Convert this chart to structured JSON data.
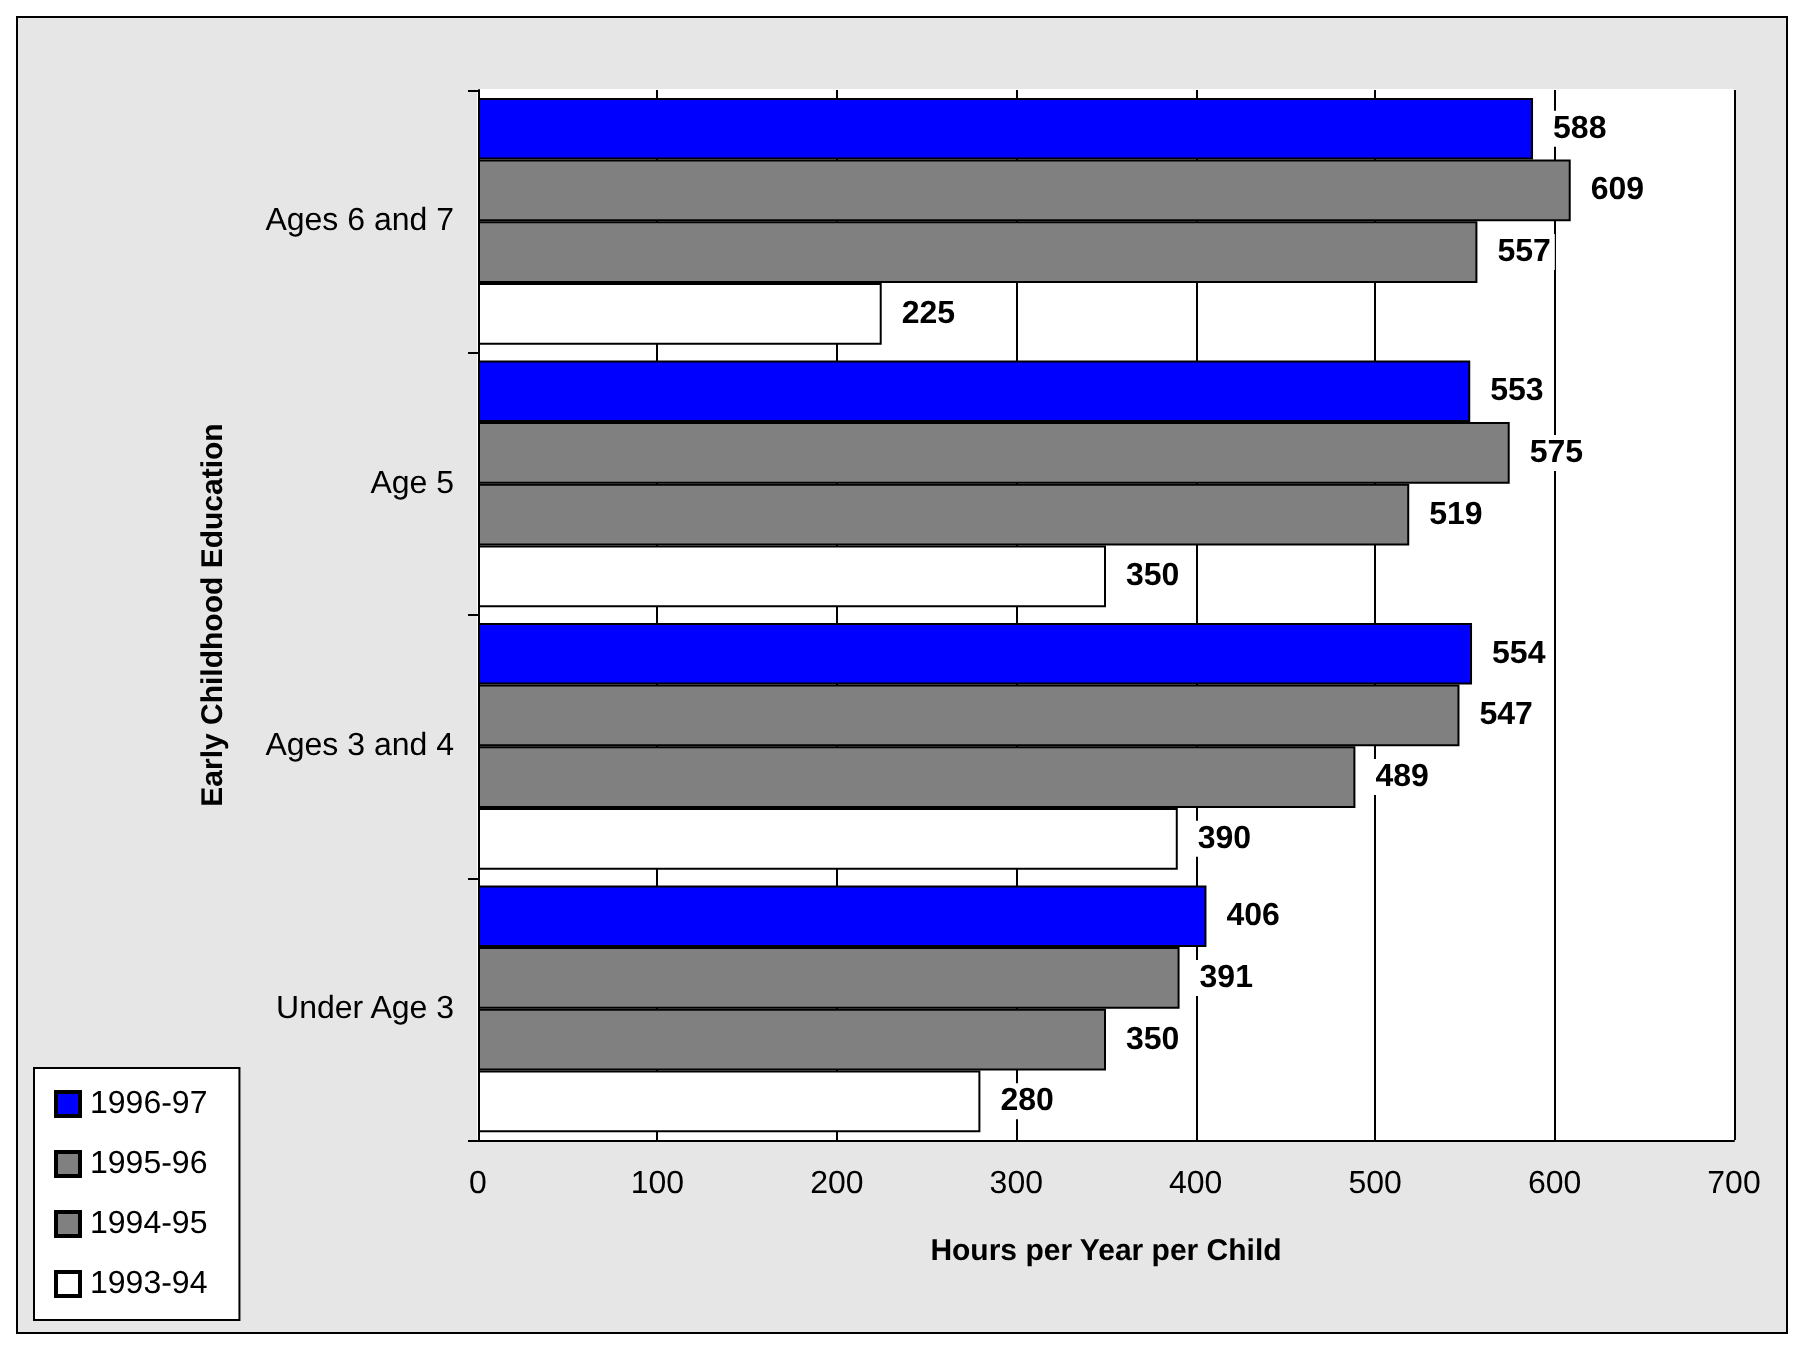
{
  "chart_data": {
    "type": "bar",
    "orientation": "horizontal",
    "categories": [
      "Ages 6 and 7",
      "Age 5",
      "Ages 3 and 4",
      "Under Age 3"
    ],
    "series": [
      {
        "name": "1996-97",
        "color": "#0000ff",
        "values": [
          588,
          553,
          554,
          406
        ]
      },
      {
        "name": "1995-96",
        "color": "#808080",
        "values": [
          609,
          575,
          547,
          391
        ]
      },
      {
        "name": "1994-95",
        "color": "#808080",
        "values": [
          557,
          519,
          489,
          350
        ]
      },
      {
        "name": "1993-94",
        "color": "#ffffff",
        "values": [
          225,
          350,
          390,
          280
        ]
      }
    ],
    "xlabel": "Hours per Year per Child",
    "ylabel": "Early Childhood Education",
    "xlim": [
      0,
      700
    ],
    "xticks": [
      0,
      100,
      200,
      300,
      400,
      500,
      600,
      700
    ],
    "grid": "x",
    "legend": "bottom left",
    "data_labels": true
  }
}
